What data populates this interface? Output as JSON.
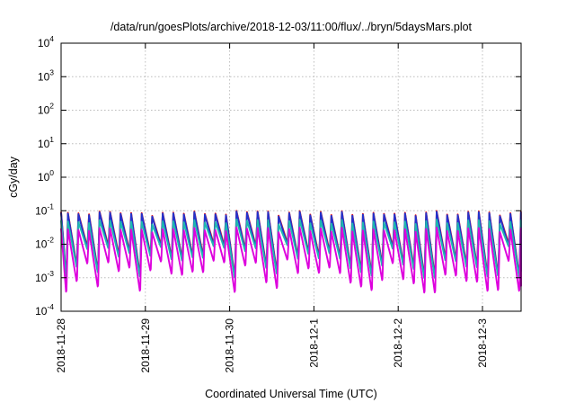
{
  "chart_data": {
    "type": "line",
    "title": "/data/run/goesPlots/archive/2018-12-03/11:00/flux/../bryn/5daysMars.plot",
    "xlabel": "Coordinated Universal Time (UTC)",
    "ylabel": "cGy/day",
    "yscale": "log",
    "ylim": [
      0.0001,
      10000
    ],
    "xlim": [
      "2018-11-28 00:00",
      "2018-12-03 11:00"
    ],
    "x_ticks": [
      "2018-11-28",
      "2018-11-29",
      "2018-11-30",
      "2018-12-1",
      "2018-12-2",
      "2018-12-3"
    ],
    "y_ticks": [
      {
        "base": "10",
        "exp": "-4",
        "value": 0.0001
      },
      {
        "base": "10",
        "exp": "-3",
        "value": 0.001
      },
      {
        "base": "10",
        "exp": "-2",
        "value": 0.01
      },
      {
        "base": "10",
        "exp": "-1",
        "value": 0.1
      },
      {
        "base": "10",
        "exp": "0",
        "value": 1
      },
      {
        "base": "10",
        "exp": "1",
        "value": 10
      },
      {
        "base": "10",
        "exp": "2",
        "value": 100
      },
      {
        "base": "10",
        "exp": "3",
        "value": 1000
      },
      {
        "base": "10",
        "exp": "4",
        "value": 10000
      }
    ],
    "grid": true,
    "legend": "none",
    "pattern": {
      "cycle_hours": 3,
      "peak_range": [
        0.07,
        0.1
      ],
      "trough_range": [
        0.001,
        0.01
      ],
      "note_days": "sawtooth flux pattern repeating roughly every 3 hours"
    },
    "series": [
      {
        "color": "#ee1111",
        "peak_factor": 1.0,
        "trough_factor": 1.15
      },
      {
        "color": "#2233cc",
        "peak_factor": 0.95,
        "trough_factor": 1.0
      },
      {
        "color": "#1fb8b0",
        "peak_factor": 0.55,
        "trough_factor": 0.95
      },
      {
        "color": "#dd00dd",
        "peak_factor": 0.32,
        "trough_factor": 0.35
      }
    ]
  }
}
